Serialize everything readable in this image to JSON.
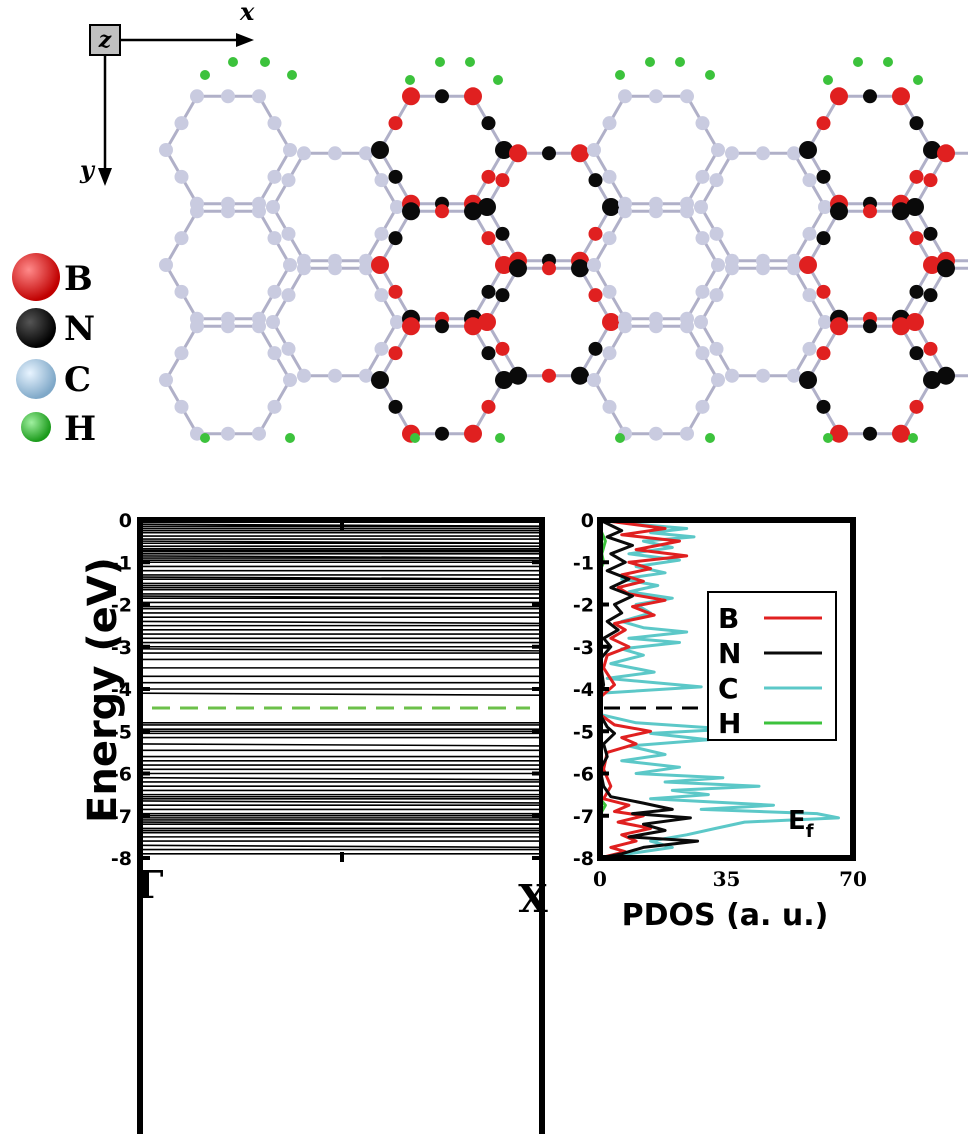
{
  "colors": {
    "B": "#e02020",
    "N": "#0a0a0a",
    "C": "#c9cbe0",
    "C_pdos": "#5cc8c8",
    "H": "#3cc23c",
    "fermi_band": "#6cc04a",
    "fermi_pdos": "#000000"
  },
  "structure": {
    "axes": {
      "z": "z",
      "x": "x",
      "y": "y"
    },
    "legend": [
      "B",
      "N",
      "C",
      "H"
    ]
  },
  "chart_data": [
    {
      "type": "line",
      "name": "band-structure",
      "ylabel": "Energy (eV)",
      "xlabel": "",
      "x_ticks": [
        "Γ",
        "X"
      ],
      "y_ticks": [
        "0",
        "-1",
        "-2",
        "-3",
        "-4",
        "-5",
        "-6",
        "-7",
        "-8"
      ],
      "ylim": [
        -8,
        0
      ],
      "fermi_level": -4.45,
      "band_energies": [
        -0.1,
        -0.15,
        -0.2,
        -0.25,
        -0.3,
        -0.38,
        -0.45,
        -0.5,
        -0.55,
        -0.62,
        -0.68,
        -0.72,
        -0.75,
        -0.8,
        -0.85,
        -0.9,
        -0.95,
        -1.0,
        -1.1,
        -1.2,
        -1.3,
        -1.35,
        -1.4,
        -1.5,
        -1.55,
        -1.6,
        -1.65,
        -1.75,
        -1.8,
        -1.85,
        -1.95,
        -2.05,
        -2.1,
        -2.2,
        -2.3,
        -2.4,
        -2.5,
        -2.6,
        -2.7,
        -2.8,
        -2.9,
        -3.0,
        -3.05,
        -3.15,
        -3.3,
        -3.5,
        -3.7,
        -3.85,
        -4.0,
        -4.1,
        -4.8,
        -4.85,
        -4.95,
        -5.0,
        -5.05,
        -5.15,
        -5.3,
        -5.45,
        -5.6,
        -5.7,
        -5.8,
        -5.9,
        -6.0,
        -6.1,
        -6.2,
        -6.3,
        -6.4,
        -6.5,
        -6.55,
        -6.6,
        -6.65,
        -6.75,
        -6.85,
        -6.95,
        -7.0,
        -7.05,
        -7.1,
        -7.15,
        -7.2,
        -7.3,
        -7.35,
        -7.4,
        -7.5,
        -7.6,
        -7.7,
        -7.8,
        -7.9
      ],
      "grid": false
    },
    {
      "type": "line",
      "name": "pdos",
      "xlabel": "PDOS (a. u.)",
      "ylabel": "",
      "x_ticks": [
        "0",
        "35",
        "70"
      ],
      "xlim": [
        0,
        70
      ],
      "y_ticks": [
        "0",
        "-1",
        "-2",
        "-3",
        "-4",
        "-5",
        "-6",
        "-7",
        "-8"
      ],
      "ylim": [
        -8,
        0
      ],
      "fermi_label": "E",
      "fermi_subscript": "f",
      "fermi_level": -4.45,
      "legend_position": "top-right",
      "series": [
        {
          "name": "B",
          "color_key": "B",
          "points": [
            [
              0,
              0
            ],
            [
              18,
              -0.2
            ],
            [
              6,
              -0.35
            ],
            [
              22,
              -0.5
            ],
            [
              10,
              -0.7
            ],
            [
              24,
              -0.85
            ],
            [
              8,
              -1.0
            ],
            [
              14,
              -1.15
            ],
            [
              6,
              -1.3
            ],
            [
              12,
              -1.45
            ],
            [
              5,
              -1.6
            ],
            [
              8,
              -1.75
            ],
            [
              18,
              -1.9
            ],
            [
              9,
              -2.05
            ],
            [
              15,
              -2.25
            ],
            [
              4,
              -2.45
            ],
            [
              7,
              -2.6
            ],
            [
              3,
              -2.8
            ],
            [
              8,
              -3.0
            ],
            [
              2,
              -3.2
            ],
            [
              1,
              -3.5
            ],
            [
              4,
              -3.9
            ],
            [
              0,
              -4.2
            ],
            [
              0,
              -4.6
            ],
            [
              4,
              -4.85
            ],
            [
              14,
              -5.0
            ],
            [
              6,
              -5.15
            ],
            [
              10,
              -5.3
            ],
            [
              2,
              -5.5
            ],
            [
              1,
              -5.9
            ],
            [
              3,
              -6.3
            ],
            [
              1,
              -6.6
            ],
            [
              8,
              -6.75
            ],
            [
              4,
              -6.9
            ],
            [
              12,
              -7.0
            ],
            [
              5,
              -7.15
            ],
            [
              14,
              -7.3
            ],
            [
              6,
              -7.45
            ],
            [
              10,
              -7.6
            ],
            [
              3,
              -7.75
            ],
            [
              7,
              -7.85
            ],
            [
              0,
              -8.0
            ]
          ]
        },
        {
          "name": "N",
          "color_key": "N",
          "points": [
            [
              0,
              0
            ],
            [
              6,
              -0.25
            ],
            [
              2,
              -0.4
            ],
            [
              9,
              -0.6
            ],
            [
              3,
              -0.8
            ],
            [
              7,
              -1.0
            ],
            [
              2,
              -1.2
            ],
            [
              8,
              -1.4
            ],
            [
              3,
              -1.6
            ],
            [
              9,
              -1.8
            ],
            [
              4,
              -2.0
            ],
            [
              6,
              -2.2
            ],
            [
              2,
              -2.4
            ],
            [
              5,
              -2.6
            ],
            [
              1,
              -2.8
            ],
            [
              3,
              -3.0
            ],
            [
              0,
              -3.3
            ],
            [
              1,
              -3.9
            ],
            [
              0,
              -4.2
            ],
            [
              0,
              -4.6
            ],
            [
              2,
              -4.9
            ],
            [
              4,
              -5.05
            ],
            [
              1,
              -5.3
            ],
            [
              2,
              -5.6
            ],
            [
              0,
              -5.9
            ],
            [
              1,
              -6.3
            ],
            [
              3,
              -6.55
            ],
            [
              12,
              -6.7
            ],
            [
              20,
              -6.85
            ],
            [
              9,
              -6.95
            ],
            [
              25,
              -7.05
            ],
            [
              12,
              -7.2
            ],
            [
              18,
              -7.35
            ],
            [
              8,
              -7.5
            ],
            [
              27,
              -7.6
            ],
            [
              12,
              -7.75
            ],
            [
              6,
              -7.9
            ],
            [
              0,
              -8.0
            ]
          ]
        },
        {
          "name": "C",
          "color_key": "C_pdos",
          "points": [
            [
              0,
              0
            ],
            [
              10,
              -0.1
            ],
            [
              24,
              -0.2
            ],
            [
              14,
              -0.3
            ],
            [
              26,
              -0.4
            ],
            [
              12,
              -0.5
            ],
            [
              20,
              -0.65
            ],
            [
              8,
              -0.8
            ],
            [
              22,
              -0.95
            ],
            [
              10,
              -1.1
            ],
            [
              18,
              -1.25
            ],
            [
              6,
              -1.4
            ],
            [
              16,
              -1.55
            ],
            [
              8,
              -1.7
            ],
            [
              20,
              -1.85
            ],
            [
              10,
              -2.0
            ],
            [
              14,
              -2.2
            ],
            [
              6,
              -2.4
            ],
            [
              12,
              -2.55
            ],
            [
              24,
              -2.65
            ],
            [
              8,
              -2.8
            ],
            [
              22,
              -2.9
            ],
            [
              6,
              -3.05
            ],
            [
              12,
              -3.2
            ],
            [
              3,
              -3.4
            ],
            [
              15,
              -3.6
            ],
            [
              2,
              -3.75
            ],
            [
              28,
              -3.95
            ],
            [
              0,
              -4.1
            ],
            [
              0,
              -4.6
            ],
            [
              10,
              -4.8
            ],
            [
              36,
              -4.95
            ],
            [
              14,
              -5.05
            ],
            [
              30,
              -5.2
            ],
            [
              8,
              -5.35
            ],
            [
              18,
              -5.55
            ],
            [
              6,
              -5.7
            ],
            [
              22,
              -5.85
            ],
            [
              10,
              -6.0
            ],
            [
              34,
              -6.1
            ],
            [
              18,
              -6.2
            ],
            [
              44,
              -6.3
            ],
            [
              20,
              -6.4
            ],
            [
              30,
              -6.5
            ],
            [
              14,
              -6.6
            ],
            [
              48,
              -6.75
            ],
            [
              28,
              -6.85
            ],
            [
              60,
              -6.95
            ],
            [
              66,
              -7.05
            ],
            [
              40,
              -7.15
            ],
            [
              32,
              -7.3
            ],
            [
              24,
              -7.45
            ],
            [
              14,
              -7.6
            ],
            [
              20,
              -7.75
            ],
            [
              8,
              -7.9
            ],
            [
              0,
              -8.0
            ]
          ]
        },
        {
          "name": "H",
          "color_key": "H",
          "points": [
            [
              0,
              -0.2
            ],
            [
              1.5,
              -0.5
            ],
            [
              0.5,
              -0.8
            ],
            [
              1,
              -1.0
            ],
            [
              0,
              -1.2
            ],
            [
              0,
              -6.6
            ],
            [
              1.5,
              -6.75
            ],
            [
              0.5,
              -6.9
            ],
            [
              0,
              -7.1
            ]
          ]
        }
      ]
    }
  ]
}
